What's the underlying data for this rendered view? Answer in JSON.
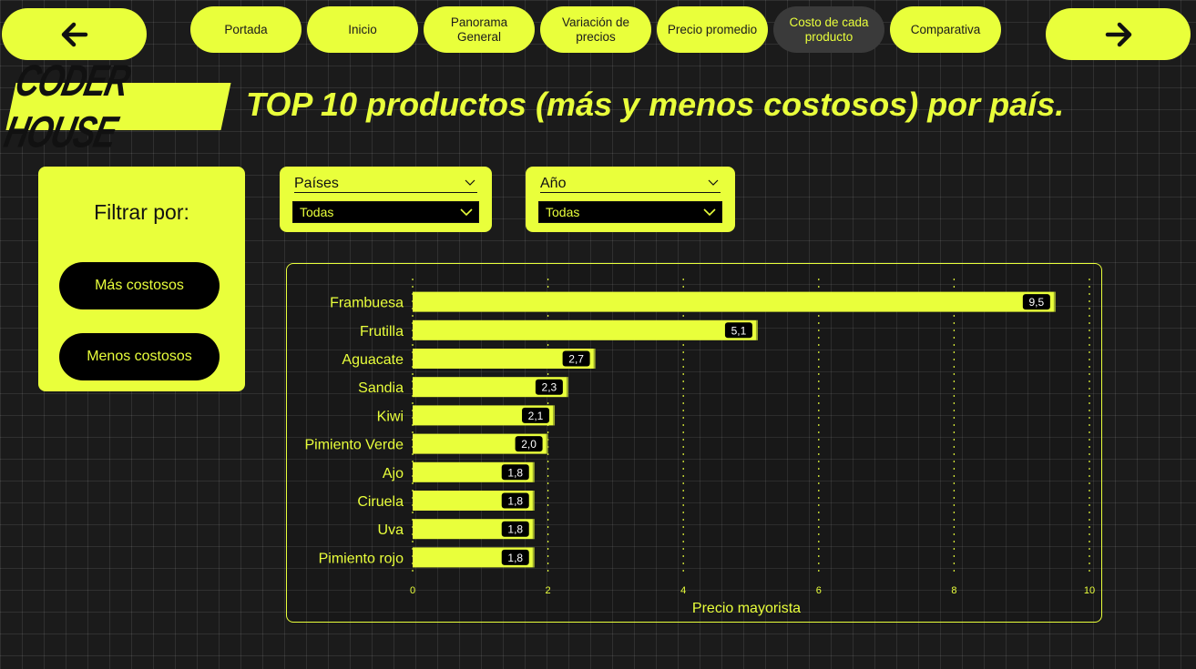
{
  "nav": {
    "back_icon": "arrow-left-icon",
    "forward_icon": "arrow-right-icon",
    "tabs": [
      {
        "label": "Portada"
      },
      {
        "label": "Inicio"
      },
      {
        "label": "Panorama General"
      },
      {
        "label": "Variación de precios"
      },
      {
        "label": "Precio promedio"
      },
      {
        "label": "Costo de cada producto",
        "active": true
      },
      {
        "label": "Comparativa"
      }
    ]
  },
  "header": {
    "logo_text": "CODER HOUSE",
    "title": "TOP 10 productos (más y menos costosos) por país."
  },
  "filter": {
    "label": "Filtrar por:",
    "buttons": [
      "Más costosos",
      "Menos costosos"
    ]
  },
  "slicers": [
    {
      "label": "Países",
      "value": "Todas"
    },
    {
      "label": "Año",
      "value": "Todas"
    }
  ],
  "colors": {
    "accent": "#e9ff3b",
    "background": "#1b1b1b",
    "tab_active": "#3a3a3a"
  },
  "chart_data": {
    "type": "bar",
    "orientation": "horizontal",
    "categories": [
      "Frambuesa",
      "Frutilla",
      "Aguacate",
      "Sandia",
      "Kiwi",
      "Pimiento Verde",
      "Ajo",
      "Ciruela",
      "Uva",
      "Pimiento rojo"
    ],
    "values": [
      9.5,
      5.1,
      2.7,
      2.3,
      2.1,
      2.0,
      1.8,
      1.8,
      1.8,
      1.8
    ],
    "value_labels": [
      "9,5",
      "5,1",
      "2,7",
      "2,3",
      "2,1",
      "2,0",
      "1,8",
      "1,8",
      "1,8",
      "1,8"
    ],
    "xlabel": "Precio mayorista",
    "ylabel": "",
    "xlim": [
      0,
      10
    ],
    "xticks": [
      0,
      2,
      4,
      6,
      8,
      10
    ],
    "grid": "vertical-dotted",
    "bar_color": "#e9ff3b"
  }
}
